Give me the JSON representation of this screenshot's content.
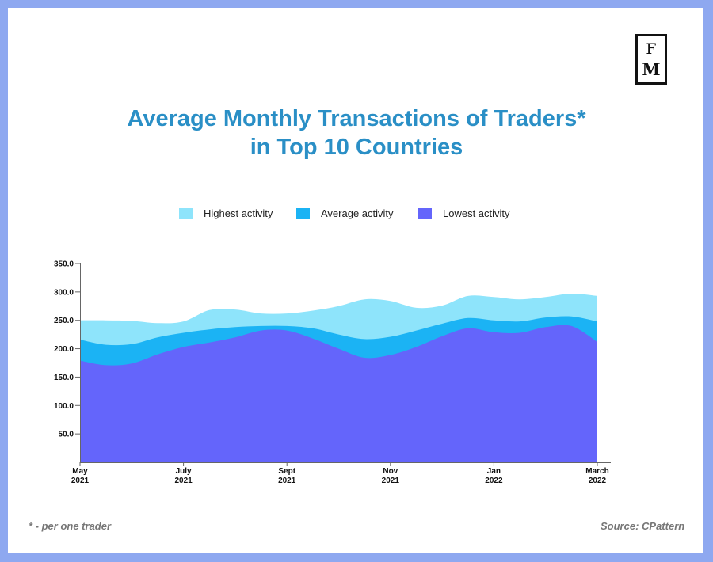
{
  "logo": {
    "top": "F",
    "bottom": "M"
  },
  "title": {
    "line1": "Average Monthly Transactions of Traders*",
    "line2": "in Top 10 Countries"
  },
  "footnote": "* - per one trader",
  "source": "Source: CPattern",
  "colors": {
    "background": "#8ea8f0",
    "title": "#2a8fc6",
    "highest": "#8ee4fb",
    "average": "#1bb3f4",
    "lowest": "#6465fb"
  },
  "chart_data": {
    "type": "area",
    "title": "Average Monthly Transactions of Traders* in Top 10 Countries",
    "ylim": [
      0,
      350
    ],
    "y_ticks": [
      "50.0",
      "100.0",
      "150.0",
      "200.0",
      "250.0",
      "300.0",
      "350.0"
    ],
    "x_ticks": [
      {
        "month": "May",
        "year": "2021",
        "x": 0
      },
      {
        "month": "July",
        "year": "2021",
        "x": 2
      },
      {
        "month": "Sept",
        "year": "2021",
        "x": 4
      },
      {
        "month": "Nov",
        "year": "2021",
        "x": 6
      },
      {
        "month": "Jan",
        "year": "2022",
        "x": 8
      },
      {
        "month": "March",
        "year": "2022",
        "x": 10
      }
    ],
    "x": [
      0,
      0.5,
      1,
      1.5,
      2,
      2.5,
      3,
      3.5,
      4,
      4.5,
      5,
      5.5,
      6,
      6.5,
      7,
      7.5,
      8,
      8.5,
      9,
      9.5,
      10
    ],
    "series": [
      {
        "name": "Highest activity",
        "color": "#8ee4fb",
        "values": [
          250,
          250,
          249,
          245,
          248,
          268,
          269,
          262,
          262,
          267,
          275,
          287,
          284,
          272,
          276,
          293,
          291,
          287,
          291,
          297,
          293
        ]
      },
      {
        "name": "Average activity",
        "color": "#1bb3f4",
        "values": [
          216,
          207,
          208,
          220,
          228,
          234,
          238,
          240,
          240,
          236,
          225,
          217,
          221,
          232,
          244,
          254,
          250,
          248,
          255,
          257,
          248
        ]
      },
      {
        "name": "Lowest activity",
        "color": "#6465fb",
        "values": [
          179,
          171,
          174,
          190,
          203,
          211,
          220,
          232,
          232,
          218,
          200,
          184,
          189,
          203,
          222,
          236,
          229,
          228,
          238,
          240,
          212
        ]
      }
    ],
    "legend": {
      "position": "top"
    }
  }
}
